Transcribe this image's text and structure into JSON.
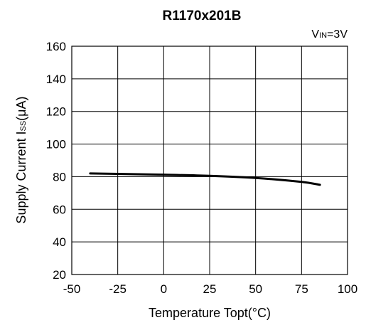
{
  "chart_data": {
    "type": "line",
    "title": "R1170x201B",
    "annotation": {
      "main": "V",
      "sub": "IN",
      "rest": "=3V"
    },
    "xlabel": "Temperature Topt(°C)",
    "ylabel": "Supply Current ISS(μA)",
    "ylabel_parts": {
      "prefix": "Supply Current I",
      "small": "SS",
      "suffix": "(μA)"
    },
    "xlim": [
      -50,
      100
    ],
    "ylim": [
      20,
      160
    ],
    "xticks": [
      -50,
      -25,
      0,
      25,
      50,
      75,
      100
    ],
    "yticks": [
      20,
      40,
      60,
      80,
      100,
      120,
      140,
      160
    ],
    "grid": true,
    "series": [
      {
        "color": "#000000",
        "x": [
          -40,
          -25,
          0,
          25,
          50,
          75,
          85
        ],
        "y": [
          82,
          81.7,
          81.2,
          80.5,
          79.2,
          76.8,
          75
        ]
      }
    ]
  }
}
